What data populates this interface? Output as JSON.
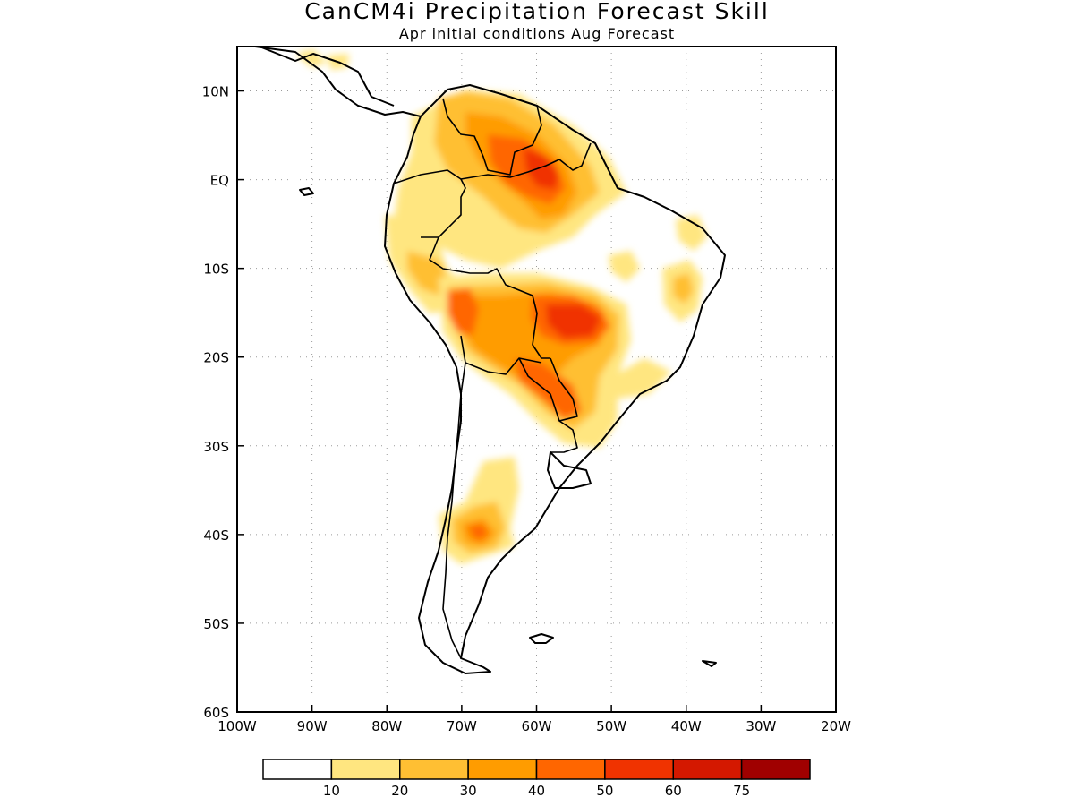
{
  "title": "CanCM4i Precipitation Forecast Skill",
  "subtitle": "Apr initial conditions   Aug Forecast",
  "map": {
    "region": "South America",
    "lon_range": [
      -100,
      -20
    ],
    "lat_range": [
      -60,
      15
    ],
    "grid": "dotted",
    "lon_ticks": [
      "100W",
      "90W",
      "80W",
      "70W",
      "60W",
      "50W",
      "40W",
      "30W",
      "20W"
    ],
    "lat_ticks": [
      "10N",
      "EQ",
      "10S",
      "20S",
      "30S",
      "40S",
      "50S",
      "60S"
    ]
  },
  "colorbar": {
    "labels": [
      "10",
      "20",
      "30",
      "40",
      "50",
      "60",
      "75"
    ],
    "colors": [
      "#ffffff",
      "#ffe680",
      "#ffbf33",
      "#ff9c00",
      "#ff6600",
      "#f03300",
      "#d41800",
      "#a00000"
    ]
  }
}
